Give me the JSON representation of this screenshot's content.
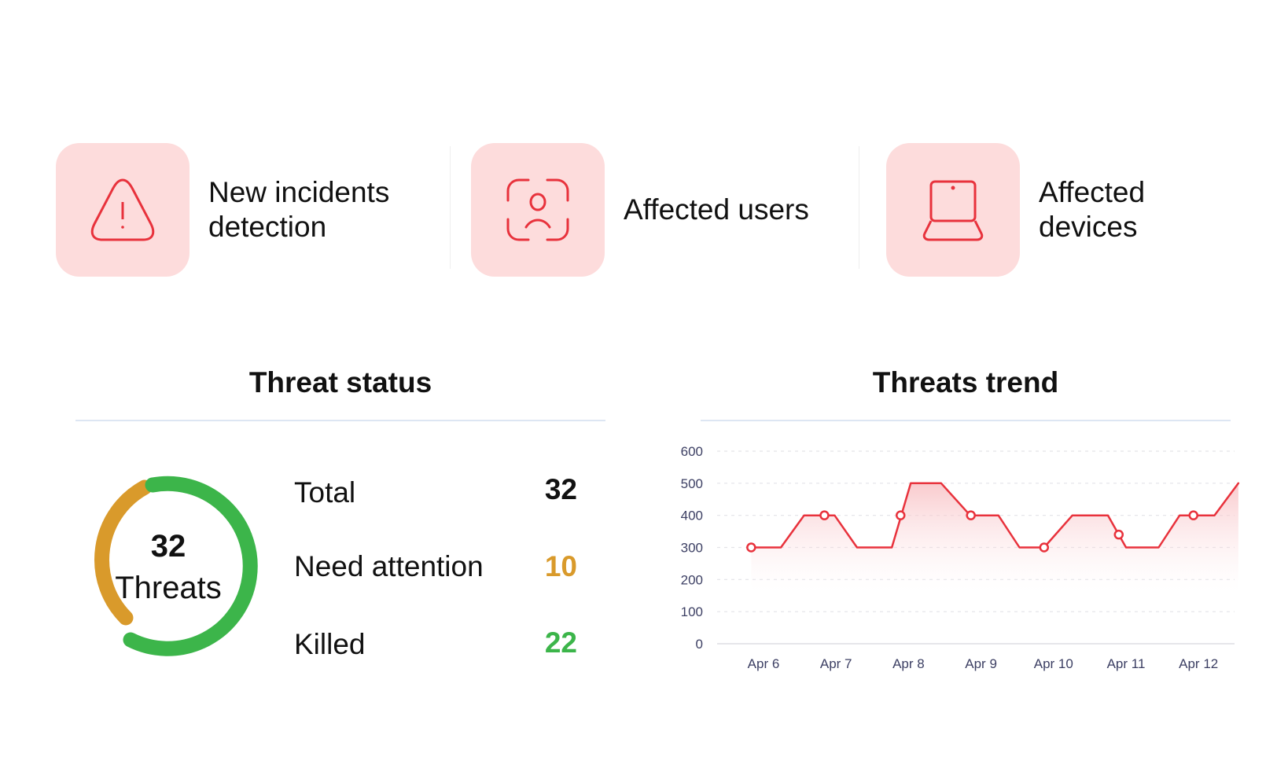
{
  "cards": [
    {
      "title_line1": "New incidents",
      "title_line2": "detection",
      "icon": "warning-triangle-icon"
    },
    {
      "title_line1": "Affected users",
      "icon": "user-scan-icon"
    },
    {
      "title_line1": "Affected",
      "title_line2": "devices",
      "icon": "laptop-icon"
    }
  ],
  "threat_status": {
    "title": "Threat status",
    "donut_count": "32",
    "donut_label": "Threats",
    "rows": [
      {
        "label": "Total",
        "value": "32"
      },
      {
        "label": "Need attention",
        "value": "10"
      },
      {
        "label": "Killed",
        "value": "22"
      }
    ]
  },
  "colors": {
    "accent": "#e8323c",
    "pink": "#fddcdc",
    "attention": "#d99a2b",
    "killed": "#3cb54a"
  },
  "chart_data": {
    "type": "area",
    "title": "Threats trend",
    "categories": [
      "Apr 6",
      "Apr 7",
      "Apr 8",
      "Apr 9",
      "Apr 10",
      "Apr 11",
      "Apr 12"
    ],
    "yticks": [
      "0",
      "100",
      "200",
      "300",
      "400",
      "500",
      "600"
    ],
    "ylim": [
      0,
      600
    ],
    "grid": true,
    "line_points": [
      [
        -0.17,
        300
      ],
      [
        0.24,
        300
      ],
      [
        0.56,
        400
      ],
      [
        0.98,
        400
      ],
      [
        1.29,
        300
      ],
      [
        1.77,
        300
      ],
      [
        2.03,
        500
      ],
      [
        2.45,
        500
      ],
      [
        2.85,
        400
      ],
      [
        3.24,
        400
      ],
      [
        3.53,
        300
      ],
      [
        3.87,
        300
      ],
      [
        4.26,
        400
      ],
      [
        4.75,
        400
      ],
      [
        5.0,
        300
      ],
      [
        5.45,
        300
      ],
      [
        5.74,
        400
      ],
      [
        6.22,
        400
      ],
      [
        6.55,
        500
      ]
    ],
    "markers": [
      [
        -0.17,
        300
      ],
      [
        0.84,
        400
      ],
      [
        1.89,
        400
      ],
      [
        2.86,
        400
      ],
      [
        3.87,
        300
      ],
      [
        4.9,
        340
      ],
      [
        5.93,
        400
      ]
    ]
  }
}
